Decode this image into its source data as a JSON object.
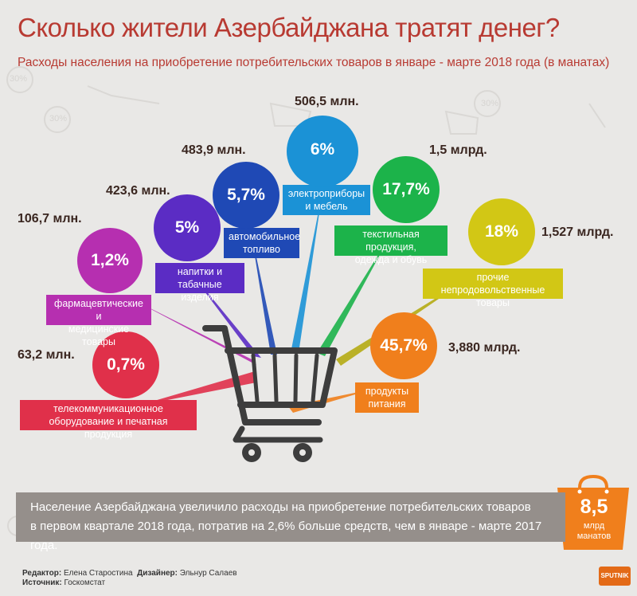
{
  "title": "Сколько жители Азербайджана тратят денег?",
  "subtitle": "Расходы населения на приобретение потребительских товаров в январе - марте 2018 года (в манатах)",
  "colors": {
    "title": "#b83a32",
    "banner": "#958f8b",
    "bag": "#f07f1c",
    "cart": "#3d3d3d"
  },
  "categories": [
    {
      "id": "telecom",
      "percent": "0,7%",
      "amount": "63,2 млн.",
      "label_lines": [
        "телекоммуникационное",
        "оборудование и печатная продукция"
      ],
      "color": "#e0304a"
    },
    {
      "id": "pharma",
      "percent": "1,2%",
      "amount": "106,7 млн.",
      "label_lines": [
        "фармацевтические и",
        "медицинские товары"
      ],
      "color": "#b62fb0"
    },
    {
      "id": "drinks",
      "percent": "5%",
      "amount": "423,6 млн.",
      "label_lines": [
        "напитки и",
        "табачные изделия"
      ],
      "color": "#5b2cc4"
    },
    {
      "id": "auto",
      "percent": "5,7%",
      "amount": "483,9 млн.",
      "label_lines": [
        "автомобильное",
        "топливо"
      ],
      "color": "#1f49b5"
    },
    {
      "id": "electro",
      "percent": "6%",
      "amount": "506,5 млн.",
      "label_lines": [
        "электроприборы",
        "и мебель"
      ],
      "color": "#1b92d6"
    },
    {
      "id": "textile",
      "percent": "17,7%",
      "amount": "1,5 млрд.",
      "label_lines": [
        "текстильная продукция,",
        "одежда и обувь"
      ],
      "color": "#1cb34a"
    },
    {
      "id": "other",
      "percent": "18%",
      "amount": "1,527 млрд.",
      "label_lines": [
        "прочие непродовольственные",
        "товары"
      ],
      "color": "#d2c715"
    },
    {
      "id": "food",
      "percent": "45,7%",
      "amount": "3,880 млрд.",
      "label_lines": [
        "продукты",
        "питания"
      ],
      "color": "#f07f1c"
    }
  ],
  "banner": {
    "line1": "Население Азербайджана увеличило расходы на приобретение потребительских товаров",
    "line2": "в первом квартале 2018 года, потратив на 2,6% больше  средств, чем в январе - марте 2017 года."
  },
  "bag": {
    "value": "8,5",
    "unit_line1": "млрд",
    "unit_line2": "манатов",
    "icon": "shopping-bag-icon"
  },
  "credits": {
    "editor_label": "Редактор:",
    "editor": "Елена Старостина",
    "designer_label": "Дизайнер:",
    "designer": "Эльнур Салаев",
    "source_label": "Источник:",
    "source": "Госкомстат"
  },
  "logo": "SPUTNIK",
  "decor": {
    "pct1": "30%",
    "pct2": "30%",
    "pct3": "30%"
  },
  "icons": [
    "shopping-cart-icon",
    "shopping-bag-icon"
  ]
}
